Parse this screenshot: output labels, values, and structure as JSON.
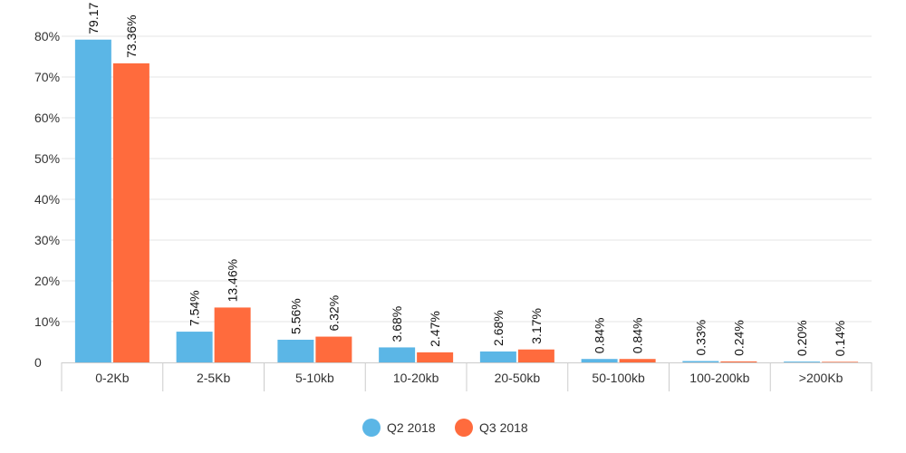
{
  "chart_data": {
    "type": "bar",
    "categories": [
      "0-2Kb",
      "2-5Kb",
      "5-10kb",
      "10-20kb",
      "20-50kb",
      "50-100kb",
      "100-200kb",
      ">200Kb"
    ],
    "series": [
      {
        "name": "Q2 2018",
        "color": "#5bb6e6",
        "values": [
          79.17,
          7.54,
          5.56,
          3.68,
          2.68,
          0.84,
          0.33,
          0.2
        ],
        "labels": [
          "79.17",
          "7.54%",
          "5.56%",
          "3.68%",
          "2.68%",
          "0.84%",
          "0.33%",
          "0.20%"
        ]
      },
      {
        "name": "Q3 2018",
        "color": "#ff6b3d",
        "values": [
          73.36,
          13.46,
          6.32,
          2.47,
          3.17,
          0.84,
          0.24,
          0.14
        ],
        "labels": [
          "73.36%",
          "13.46%",
          "6.32%",
          "2.47%",
          "3.17%",
          "0.84%",
          "0.24%",
          "0.14%"
        ]
      }
    ],
    "yticks": [
      "0",
      "10%",
      "20%",
      "30%",
      "40%",
      "50%",
      "60%",
      "70%",
      "80%"
    ],
    "ylim": [
      0,
      80
    ],
    "grid": true,
    "legend_position": "bottom-center"
  }
}
